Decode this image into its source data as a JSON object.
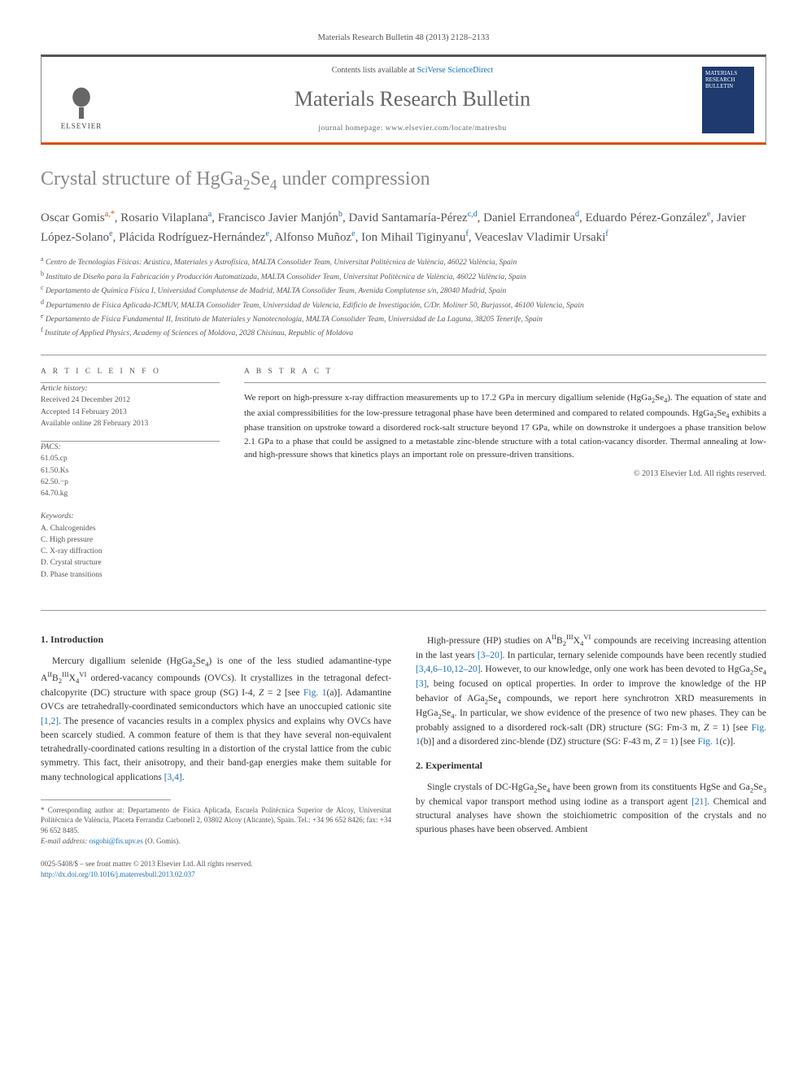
{
  "header": {
    "citation": "Materials Research Bulletin 48 (2013) 2128–2133",
    "contents_prefix": "Contents lists available at ",
    "contents_link": "SciVerse ScienceDirect",
    "journal_name": "Materials Research Bulletin",
    "homepage_prefix": "journal homepage: ",
    "homepage_url": "www.elsevier.com/locate/matresbu",
    "elsevier_label": "ELSEVIER",
    "cover_title": "MATERIALS RESEARCH BULLETIN"
  },
  "article": {
    "title_html": "Crystal structure of HgGa<sub>2</sub>Se<sub>4</sub> under compression",
    "authors_html": "Oscar Gomis<sup class=\"corr\">a,*</sup>, Rosario Vilaplana<sup>a</sup>, Francisco Javier Manjón<sup>b</sup>, David Santamaría-Pérez<sup>c,d</sup>, Daniel Errandonea<sup>d</sup>, Eduardo Pérez-González<sup>e</sup>, Javier López-Solano<sup>e</sup>, Plácida Rodríguez-Hernández<sup>e</sup>, Alfonso Muñoz<sup>e</sup>, Ion Mihail Tiginyanu<sup>f</sup>, Veaceslav Vladimir Ursaki<sup>f</sup>",
    "affiliations": [
      "a Centro de Tecnologías Físicas: Acústica, Materiales y Astrofísica, MALTA Consolider Team, Universitat Politècnica de València, 46022 València, Spain",
      "b Instituto de Diseño para la Fabricación y Producción Automatizada, MALTA Consolider Team, Universitat Politècnica de València, 46022 València, Spain",
      "c Departamento de Química Física I, Universidad Complutense de Madrid, MALTA Consolider Team, Avenida Complutense s/n, 28040 Madrid, Spain",
      "d Departamento de Física Aplicada-ICMUV, MALTA Consolider Team, Universidad de Valencia, Edificio de Investigación, C/Dr. Moliner 50, Burjassot, 46100 Valencia, Spain",
      "e Departamento de Física Fundamental II, Instituto de Materiales y Nanotecnología, MALTA Consolider Team, Universidad de La Laguna, 38205 Tenerife, Spain",
      "f Institute of Applied Physics, Academy of Sciences of Moldova, 2028 Chisinau, Republic of Moldova"
    ]
  },
  "info": {
    "heading_info": "A R T I C L E    I N F O",
    "history_label": "Article history:",
    "history_lines": [
      "Received 24 December 2012",
      "Accepted 14 February 2013",
      "Available online 28 February 2013"
    ],
    "pacs_label": "PACS:",
    "pacs_lines": [
      "61.05.cp",
      "61.50.Ks",
      "62.50.−p",
      "64.70.kg"
    ],
    "keywords_label": "Keywords:",
    "keywords_lines": [
      "A. Chalcogenides",
      "C. High pressure",
      "C. X-ray diffraction",
      "D. Crystal structure",
      "D. Phase transitions"
    ]
  },
  "abstract": {
    "heading": "A B S T R A C T",
    "text_html": "We report on high-pressure x-ray diffraction measurements up to 17.2 GPa in mercury digallium selenide (HgGa<sub>2</sub>Se<sub>4</sub>). The equation of state and the axial compressibilities for the low-pressure tetragonal phase have been determined and compared to related compounds. HgGa<sub>2</sub>Se<sub>4</sub> exhibits a phase transition on upstroke toward a disordered rock-salt structure beyond 17 GPa, while on downstroke it undergoes a phase transition below 2.1 GPa to a phase that could be assigned to a metastable zinc-blende structure with a total cation-vacancy disorder. Thermal annealing at low- and high-pressure shows that kinetics plays an important role on pressure-driven transitions.",
    "copyright": "© 2013 Elsevier Ltd. All rights reserved."
  },
  "body": {
    "left": {
      "heading": "1. Introduction",
      "p1_html": "Mercury digallium selenide (HgGa<sub>2</sub>Se<sub>4</sub>) is one of the less studied adamantine-type A<sup>II</sup>B<sub>2</sub><sup>III</sup>X<sub>4</sub><sup>VI</sup> ordered-vacancy compounds (OVCs). It crystallizes in the tetragonal defect-chalcopyrite (DC) structure with space group (SG) I-4, <i>Z</i> = 2 [see <a>Fig. 1</a>(a)]. Adamantine OVCs are tetrahedrally-coordinated semiconductors which have an unoccupied cationic site <a>[1,2]</a>. The presence of vacancies results in a complex physics and explains why OVCs have been scarcely studied. A common feature of them is that they have several non-equivalent tetrahedrally-coordinated cations resulting in a distortion of the crystal lattice from the cubic symmetry. This fact, their anisotropy, and their band-gap energies make them suitable for many technological applications <a>[3,4]</a>."
    },
    "right": {
      "p1_html": "High-pressure (HP) studies on A<sup>II</sup>B<sub>2</sub><sup>III</sup>X<sub>4</sub><sup>VI</sup> compounds are receiving increasing attention in the last years <a>[3–20]</a>. In particular, ternary selenide compounds have been recently studied <a>[3,4,6–10,12–20]</a>. However, to our knowledge, only one work has been devoted to HgGa<sub>2</sub>Se<sub>4</sub> <a>[3]</a>, being focused on optical properties. In order to improve the knowledge of the HP behavior of AGa<sub>2</sub>Se<sub>4</sub> compounds, we report here synchrotron XRD measurements in HgGa<sub>2</sub>Se<sub>4</sub>. In particular, we show evidence of the presence of two new phases. They can be probably assigned to a disordered rock-salt (DR) structure (SG: Fm-3 m, <i>Z</i> = 1) [see <a>Fig. 1</a>(b)] and a disordered zinc-blende (DZ) structure (SG: F-43 m, <i>Z</i> = 1) [see <a>Fig. 1</a>(c)].",
      "heading2": "2. Experimental",
      "p2_html": "Single crystals of DC-HgGa<sub>2</sub>Se<sub>4</sub> have been grown from its constituents HgSe and Ga<sub>2</sub>Se<sub>3</sub> by chemical vapor transport method using iodine as a transport agent <a>[21]</a>. Chemical and structural analyses have shown the stoichiometric composition of the crystals and no spurious phases have been observed. Ambient"
    }
  },
  "footnote": {
    "marker": "*",
    "text": "Corresponding author at: Departamento de Física Aplicada, Escuela Politécnica Superior de Alcoy, Universitat Politècnica de València, Placeta Ferrandiz Carbonell 2, 03802 Alcoy (Alicante), Spain. Tel.: +34 96 652 8426; fax: +34 96 652 8485.",
    "email_label": "E-mail address:",
    "email": "osgohi@fis.upv.es",
    "email_suffix": "(O. Gomis)."
  },
  "doi": {
    "line1": "0025-5408/$ – see front matter © 2013 Elsevier Ltd. All rights reserved.",
    "line2_prefix": "",
    "url": "http://dx.doi.org/10.1016/j.materresbull.2013.02.037"
  },
  "colors": {
    "link": "#1a6fb5",
    "accent": "#d94f00",
    "text": "#333333",
    "muted": "#555555",
    "cover_bg": "#1e3a6e"
  }
}
